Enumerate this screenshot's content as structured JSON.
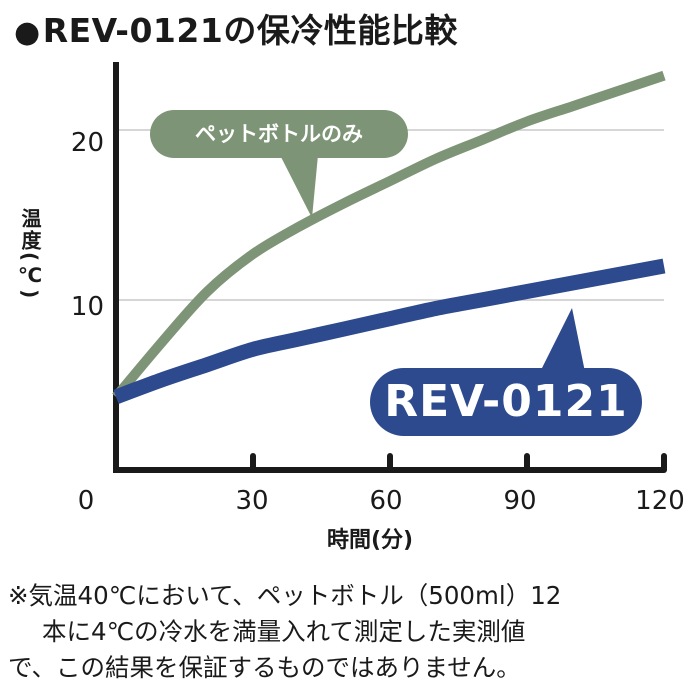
{
  "title": {
    "bullet": "●",
    "text": "REV-0121の保冷性能比較"
  },
  "footnote": {
    "line1": "※気温40℃において、ペットボトル（500ml）12",
    "line2": "本に4℃の冷水を満量入れて測定した実測値",
    "line3": "で、この結果を保証するものではありません。"
  },
  "chart_data": {
    "type": "line",
    "title": "REV-0121の保冷性能比較",
    "xlabel": "時間(分)",
    "ylabel": "温度(℃)",
    "x_ticks": [
      "0",
      "30",
      "60",
      "90",
      "120"
    ],
    "y_ticks": [
      "10",
      "20"
    ],
    "xlim": [
      0,
      120
    ],
    "ylim": [
      0,
      24
    ],
    "grid": true,
    "x": [
      0,
      10,
      20,
      30,
      40,
      50,
      60,
      70,
      80,
      90,
      100,
      110,
      120
    ],
    "series": [
      {
        "name": "ペットボトルのみ",
        "color": "#7d9476",
        "values": [
          4.3,
          7.5,
          10.5,
          12.7,
          14.3,
          15.7,
          17.0,
          18.3,
          19.4,
          20.5,
          21.4,
          22.3,
          23.2
        ]
      },
      {
        "name": "REV-0121",
        "color": "#2c4a8d",
        "values": [
          4.3,
          5.3,
          6.2,
          7.1,
          7.7,
          8.3,
          8.9,
          9.5,
          10.0,
          10.5,
          11.0,
          11.5,
          12.0
        ]
      }
    ]
  }
}
